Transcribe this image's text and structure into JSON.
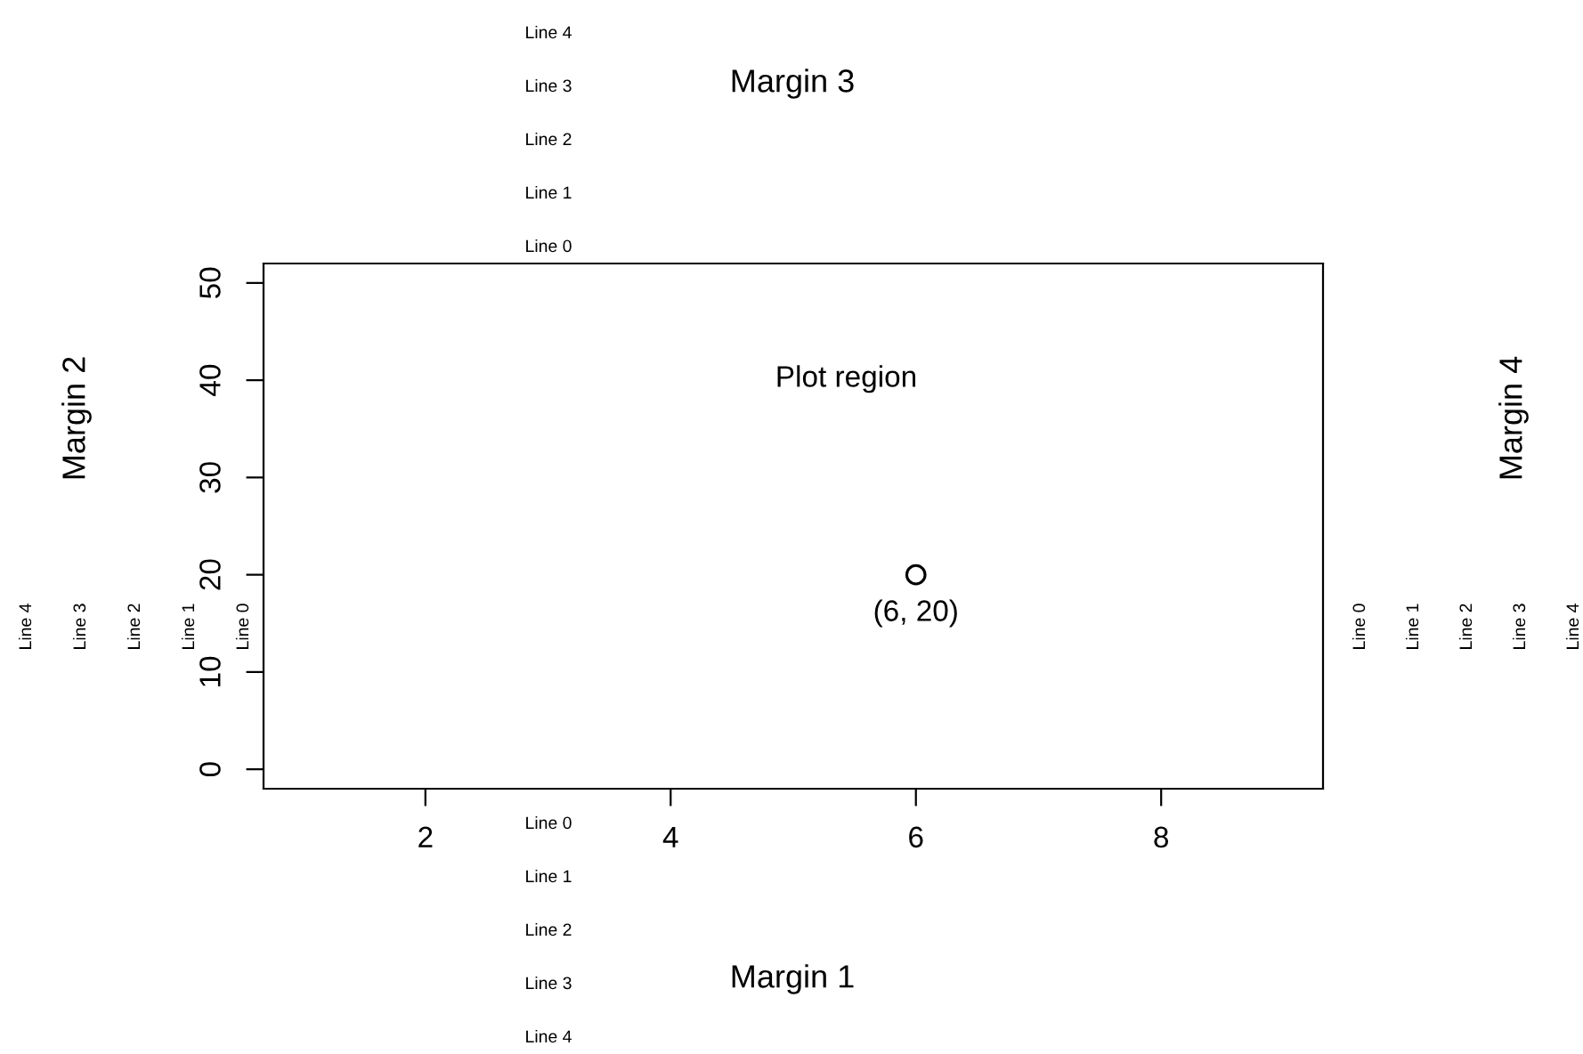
{
  "chart_data": {
    "type": "scatter",
    "x": [
      6
    ],
    "series": [
      {
        "color": "#000000",
        "values": [
          20
        ]
      }
    ],
    "marker": "circle",
    "grid": false,
    "xlim": [
      0.68,
      9.32
    ],
    "ylim": [
      -2,
      52
    ],
    "xticks": [
      2,
      4,
      6,
      8
    ],
    "yticks": [
      0,
      10,
      20,
      30,
      40,
      50
    ],
    "annotations": [
      "Plot region",
      {
        "text": "(6, 20)",
        "x": 6,
        "y": 20
      },
      "Margin 1",
      "Margin 2",
      "Margin 3",
      "Margin 4",
      "Line 0",
      "Line 1",
      "Line 2",
      "Line 3",
      "Line 4",
      "Line 0",
      "Line 1",
      "Line 2",
      "Line 3",
      "Line 4",
      "Line 0",
      "Line 1",
      "Line 2",
      "Line 3",
      "Line 4",
      "Line 0",
      "Line 1",
      "Line 2",
      "Line 3",
      "Line 4"
    ]
  }
}
